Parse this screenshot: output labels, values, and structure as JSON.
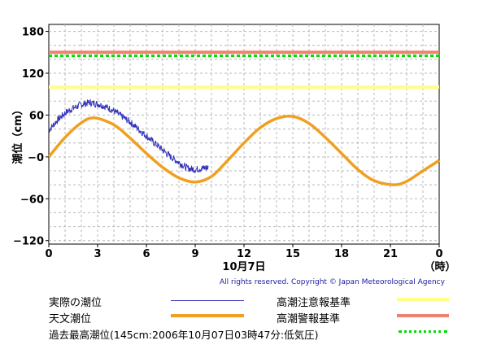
{
  "chart_data": {
    "type": "line",
    "ylabel": "潮位（cm）",
    "date_label": "10月7日",
    "x_end_label": "（時）",
    "xlim": [
      0,
      24
    ],
    "ylim": [
      -125,
      190
    ],
    "x_ticks": [
      "0",
      "3",
      "6",
      "9",
      "12",
      "15",
      "18",
      "21",
      "0"
    ],
    "y_ticks": [
      "180",
      "120",
      "60",
      "−0",
      "−60",
      "−120"
    ],
    "thresholds": [
      {
        "name": "高潮注意報基準",
        "value": 100,
        "color": "#ffff88"
      },
      {
        "name": "高潮警報基準",
        "value": 150,
        "color": "#f08070"
      },
      {
        "name": "過去最高潮位",
        "value": 145,
        "color": "#00dd00"
      }
    ],
    "series": [
      {
        "name": "天文潮位",
        "color": "#f0a020",
        "x": [
          0,
          1,
          2,
          2.8,
          4,
          5,
          6,
          7,
          8,
          9,
          10,
          11,
          12,
          13,
          14,
          15,
          16,
          17,
          18,
          19,
          20,
          21.2,
          22,
          23,
          24
        ],
        "values": [
          0,
          28,
          49,
          56,
          46,
          27,
          5,
          -15,
          -30,
          -36,
          -28,
          -5,
          20,
          42,
          55,
          58,
          48,
          28,
          5,
          -18,
          -34,
          -40,
          -35,
          -20,
          -5
        ]
      },
      {
        "name": "実際の潮位",
        "color": "#3333bb",
        "x": [
          0,
          0.5,
          1,
          1.5,
          2,
          2.5,
          3,
          3.5,
          4,
          4.5,
          5,
          5.5,
          6,
          6.5,
          7,
          7.5,
          8,
          8.5,
          9,
          9.5,
          9.8
        ],
        "values": [
          38,
          52,
          63,
          70,
          75,
          78,
          76,
          72,
          66,
          58,
          50,
          40,
          30,
          20,
          10,
          0,
          -8,
          -16,
          -18,
          -16,
          -15
        ]
      }
    ]
  },
  "legend": {
    "actual": "実際の潮位",
    "astronomical": "天文潮位",
    "record": "過去最高潮位(145cm:2006年10月07日03時47分:低気圧)",
    "caution": "高潮注意報基準",
    "warning": "高潮警報基準"
  },
  "copyright": "All rights reserved. Copyright © Japan Meteorological Agency"
}
